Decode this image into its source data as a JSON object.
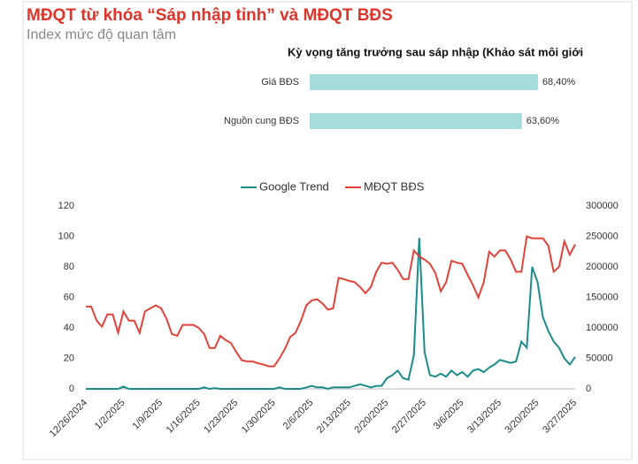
{
  "chart_data": [
    {
      "type": "hbar",
      "title": "Kỳ vọng tăng trưởng sau sáp nhập (Khảo sát môi giới",
      "categories": [
        "Giá BĐS",
        "Nguồn cung BĐS"
      ],
      "values": [
        68.4,
        63.6
      ],
      "value_labels": [
        "68,40%",
        "63,60%"
      ],
      "color": "#a6dcdc"
    },
    {
      "type": "line",
      "title": "MĐQT từ khóa “Sáp nhập tỉnh” và MĐQT BĐS",
      "subtitle": "Index mức độ quan tâm",
      "x": [
        "12/26/2024",
        "12/27/2024",
        "12/28/2024",
        "12/29/2024",
        "12/30/2024",
        "12/31/2024",
        "1/1/2025",
        "1/2/2025",
        "1/3/2025",
        "1/4/2025",
        "1/5/2025",
        "1/6/2025",
        "1/7/2025",
        "1/8/2025",
        "1/9/2025",
        "1/10/2025",
        "1/11/2025",
        "1/12/2025",
        "1/13/2025",
        "1/14/2025",
        "1/15/2025",
        "1/16/2025",
        "1/17/2025",
        "1/18/2025",
        "1/19/2025",
        "1/20/2025",
        "1/21/2025",
        "1/22/2025",
        "1/23/2025",
        "1/24/2025",
        "1/25/2025",
        "1/26/2025",
        "1/27/2025",
        "1/28/2025",
        "1/29/2025",
        "1/30/2025",
        "1/31/2025",
        "2/1/2025",
        "2/2/2025",
        "2/3/2025",
        "2/4/2025",
        "2/5/2025",
        "2/6/2025",
        "2/7/2025",
        "2/8/2025",
        "2/9/2025",
        "2/10/2025",
        "2/11/2025",
        "2/12/2025",
        "2/13/2025",
        "2/14/2025",
        "2/15/2025",
        "2/16/2025",
        "2/17/2025",
        "2/18/2025",
        "2/19/2025",
        "2/20/2025",
        "2/21/2025",
        "2/22/2025",
        "2/23/2025",
        "2/24/2025",
        "2/25/2025",
        "2/26/2025",
        "2/27/2025",
        "2/28/2025",
        "3/1/2025",
        "3/2/2025",
        "3/3/2025",
        "3/4/2025",
        "3/5/2025",
        "3/6/2025",
        "3/7/2025",
        "3/8/2025",
        "3/9/2025",
        "3/10/2025",
        "3/11/2025",
        "3/12/2025",
        "3/13/2025",
        "3/14/2025",
        "3/15/2025",
        "3/16/2025",
        "3/17/2025",
        "3/18/2025",
        "3/19/2025",
        "3/20/2025",
        "3/21/2025",
        "3/22/2025",
        "3/23/2025",
        "3/24/2025",
        "3/25/2025",
        "3/26/2025",
        "3/27/2025"
      ],
      "ylim": [
        0,
        120
      ],
      "yticks": [
        0,
        20,
        40,
        60,
        80,
        100,
        120
      ],
      "y2lim": [
        0,
        300000
      ],
      "y2ticks": [
        0,
        50000,
        100000,
        150000,
        200000,
        250000,
        300000
      ],
      "series": [
        {
          "name": "Google Trend",
          "color": "#1b8c8a",
          "values": [
            0,
            0,
            0,
            0,
            0,
            0,
            0,
            1.5,
            0,
            0,
            0,
            0,
            0,
            0,
            0,
            0,
            0,
            0,
            0,
            0,
            0,
            0,
            1,
            0,
            0.5,
            0,
            0,
            0,
            0,
            0,
            0,
            0,
            0,
            0,
            0,
            0,
            1,
            0,
            0,
            0,
            0,
            1,
            2,
            1,
            1,
            0,
            1,
            1,
            1,
            1,
            2,
            3,
            2,
            1,
            2,
            2,
            7,
            9,
            12,
            7,
            6,
            22,
            99,
            24,
            9,
            8,
            10,
            8,
            12,
            9,
            11,
            8,
            12,
            13,
            11,
            14,
            16,
            19,
            18,
            17,
            18,
            31,
            27,
            80,
            70,
            47,
            38,
            31,
            27,
            20,
            16,
            21
          ]
        },
        {
          "name": "MĐQT BĐS",
          "color": "#e0433a",
          "axis": "y2",
          "values": [
            135000,
            135000,
            112000,
            102000,
            122000,
            122000,
            92000,
            127000,
            112000,
            112000,
            92000,
            127000,
            132000,
            137000,
            132000,
            115000,
            90000,
            87000,
            105000,
            105000,
            105000,
            100000,
            90000,
            67000,
            67000,
            87000,
            80000,
            75000,
            60000,
            47000,
            45000,
            45000,
            42000,
            40000,
            37000,
            37000,
            50000,
            65000,
            85000,
            92000,
            112000,
            137000,
            145000,
            147000,
            140000,
            130000,
            132000,
            182000,
            180000,
            177000,
            175000,
            167000,
            157000,
            167000,
            192000,
            207000,
            205000,
            207000,
            195000,
            180000,
            180000,
            227000,
            217000,
            212000,
            205000,
            190000,
            160000,
            175000,
            210000,
            207000,
            205000,
            187000,
            170000,
            150000,
            175000,
            225000,
            217000,
            227000,
            227000,
            212000,
            192000,
            192000,
            250000,
            247000,
            247000,
            247000,
            235000,
            192000,
            200000,
            242000,
            220000,
            237000
          ]
        }
      ]
    }
  ]
}
